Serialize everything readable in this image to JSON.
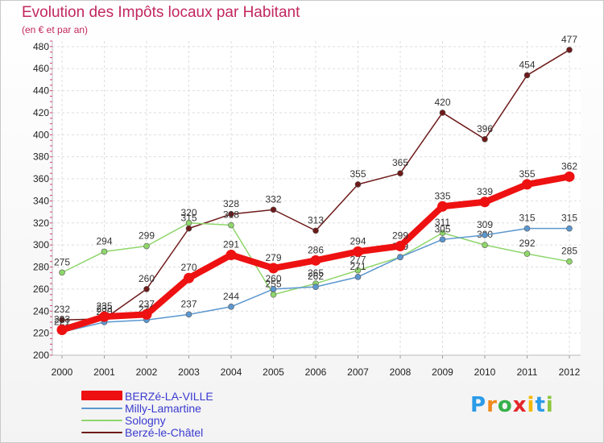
{
  "header": {
    "title": "Evolution des Impôts locaux par Habitant",
    "subtitle": "(en € et par an)"
  },
  "logo": {
    "text": "Proxiti",
    "letters": [
      "P",
      "r",
      "o",
      "x",
      "i",
      "t",
      "i"
    ]
  },
  "chart_data": {
    "type": "line",
    "title": "Evolution des Impôts locaux par Habitant",
    "subtitle": "(en € et par an)",
    "xlabel": "",
    "ylabel": "",
    "x": [
      2000,
      2001,
      2002,
      2003,
      2004,
      2005,
      2006,
      2007,
      2008,
      2009,
      2010,
      2011,
      2012
    ],
    "y_ticks": [
      200,
      220,
      240,
      260,
      280,
      300,
      320,
      340,
      360,
      380,
      400,
      420,
      440,
      460,
      480
    ],
    "ylim": [
      200,
      485
    ],
    "grid": true,
    "legend_position": "bottom-left",
    "series": [
      {
        "name": "Berzé-le-Châtel",
        "color": "#6e1a1a",
        "values": [
          232,
          233,
          260,
          315,
          328,
          332,
          313,
          355,
          365,
          420,
          396,
          454,
          477
        ]
      },
      {
        "name": "Sologny",
        "color": "#8fd66b",
        "values": [
          275,
          294,
          299,
          320,
          318,
          255,
          265,
          277,
          289,
          311,
          300,
          292,
          285
        ]
      },
      {
        "name": "Milly-Lamartine",
        "color": "#5b97cf",
        "values": [
          221,
          230,
          232,
          237,
          244,
          260,
          262,
          271,
          289,
          305,
          309,
          315,
          315
        ]
      },
      {
        "name": "BERZé-LA-VILLE",
        "color": "#ee1111",
        "values": [
          223,
          235,
          237,
          270,
          291,
          279,
          286,
          294,
          299,
          335,
          339,
          355,
          362
        ]
      }
    ],
    "legend": [
      "BERZé-LA-VILLE",
      "Milly-Lamartine",
      "Sologny",
      "Berzé-le-Châtel"
    ]
  }
}
